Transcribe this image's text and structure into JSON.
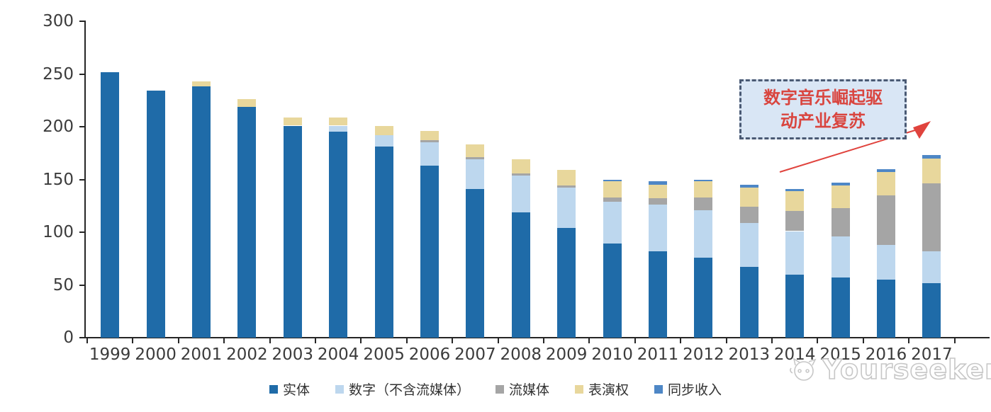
{
  "chart_data": {
    "type": "bar",
    "stacked": true,
    "categories": [
      "1999",
      "2000",
      "2001",
      "2002",
      "2003",
      "2004",
      "2005",
      "2006",
      "2007",
      "2008",
      "2009",
      "2010",
      "2011",
      "2012",
      "2013",
      "2014",
      "2015",
      "2016",
      "2017"
    ],
    "series": [
      {
        "name": "实体",
        "color": "#1f6ba8",
        "values": [
          252,
          234,
          238,
          219,
          201,
          195,
          181,
          163,
          141,
          119,
          104,
          89,
          82,
          76,
          67,
          60,
          57,
          55,
          52
        ]
      },
      {
        "name": "数字（不含流媒体）",
        "color": "#bdd7ee",
        "values": [
          0,
          0,
          0,
          0,
          0,
          6,
          11,
          22,
          28,
          35,
          38,
          40,
          44,
          45,
          42,
          41,
          39,
          33,
          30
        ]
      },
      {
        "name": "流媒体",
        "color": "#a5a5a5",
        "values": [
          0,
          0,
          0,
          0,
          0,
          0,
          0,
          2,
          2,
          2,
          2,
          4,
          6,
          12,
          15,
          19,
          27,
          47,
          64
        ]
      },
      {
        "name": "表演权",
        "color": "#e8d79c",
        "values": [
          0,
          0,
          5,
          7,
          8,
          8,
          9,
          9,
          12,
          13,
          15,
          15,
          13,
          15,
          18,
          19,
          21,
          22,
          24
        ]
      },
      {
        "name": "同步收入",
        "color": "#4e87c6",
        "values": [
          0,
          0,
          0,
          0,
          0,
          0,
          0,
          0,
          0,
          0,
          0,
          2,
          3,
          2,
          3,
          2,
          3,
          3,
          3
        ]
      }
    ],
    "ylim": [
      0,
      300
    ],
    "yticks": [
      0,
      50,
      100,
      150,
      200,
      250,
      300
    ],
    "xlabel": "",
    "ylabel": "",
    "grid": false,
    "legend_position": "bottom"
  },
  "annotation": {
    "line1": "数字音乐崛起驱",
    "line2": "动产业复苏",
    "text_color": "#d9453f",
    "box_fill": "#d9e6f5",
    "box_border": "#4a5a74",
    "arrow_color": "#e0433d"
  },
  "watermark": {
    "text": "Yourseeker"
  },
  "axis": {
    "line_color": "#262626",
    "label_color": "#3b3b3b"
  }
}
